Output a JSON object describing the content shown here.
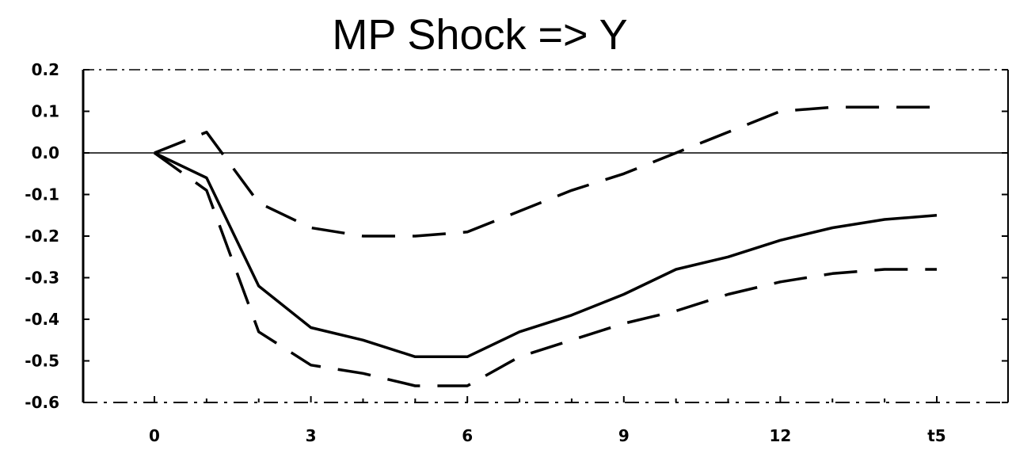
{
  "chart_data": {
    "type": "line",
    "title": "MP Shock => Y",
    "xlabel": "",
    "ylabel": "",
    "xlim": [
      0,
      16.5
    ],
    "ylim": [
      -0.6,
      0.2
    ],
    "x_ticks": [
      0,
      3,
      6,
      9,
      12,
      15
    ],
    "x_tick_labels": [
      "0",
      "3",
      "6",
      "9",
      "12",
      "t5"
    ],
    "y_ticks": [
      0.2,
      0.1,
      0.0,
      -0.1,
      -0.2,
      -0.3,
      -0.4,
      -0.5,
      -0.6
    ],
    "y_tick_labels": [
      "0.2",
      "0.1",
      "0.0",
      "-0.1",
      "-0.2",
      "-0.3",
      "-0.4",
      "-0.5",
      "-0.6"
    ],
    "zero_line": true,
    "grid": false,
    "x": [
      0,
      1,
      2,
      3,
      4,
      5,
      6,
      7,
      8,
      9,
      10,
      11,
      12,
      13,
      14,
      15
    ],
    "series": [
      {
        "style": "solid",
        "values": [
          0.0,
          -0.06,
          -0.32,
          -0.42,
          -0.45,
          -0.49,
          -0.49,
          -0.43,
          -0.39,
          -0.34,
          -0.28,
          -0.25,
          -0.21,
          -0.18,
          -0.16,
          -0.15
        ]
      },
      {
        "style": "dashed",
        "values": [
          0.0,
          0.05,
          -0.12,
          -0.18,
          -0.2,
          -0.2,
          -0.19,
          -0.14,
          -0.09,
          -0.05,
          0.0,
          0.05,
          0.1,
          0.11,
          0.11,
          0.11
        ]
      },
      {
        "style": "dashed",
        "values": [
          0.0,
          -0.09,
          -0.43,
          -0.51,
          -0.53,
          -0.56,
          -0.56,
          -0.49,
          -0.45,
          -0.41,
          -0.38,
          -0.34,
          -0.31,
          -0.29,
          -0.28,
          -0.28
        ]
      }
    ],
    "colors": {
      "line": "#000000",
      "background": "#ffffff"
    }
  }
}
